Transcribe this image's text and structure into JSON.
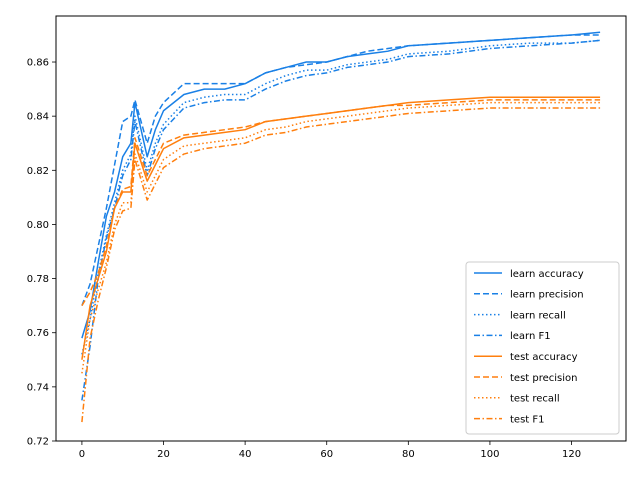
{
  "chart_data": {
    "type": "line",
    "title": "",
    "xlabel": "",
    "ylabel": "",
    "xlim": [
      -6.35,
      133.35
    ],
    "ylim": [
      0.72,
      0.877
    ],
    "xticks": [
      0,
      20,
      40,
      60,
      80,
      100,
      120
    ],
    "yticks": [
      0.72,
      0.74,
      0.76,
      0.78,
      0.8,
      0.82,
      0.84,
      0.86
    ],
    "grid": false,
    "legend_position": "lower-right",
    "colors": {
      "learn": "#1a80e6",
      "test": "#ff7f0e"
    },
    "series": [
      {
        "name": "learn accuracy",
        "group": "learn",
        "style": "solid",
        "x": [
          0,
          2,
          4,
          6,
          8,
          10,
          12,
          13,
          16,
          18,
          20,
          25,
          30,
          35,
          40,
          45,
          50,
          55,
          60,
          65,
          70,
          75,
          80,
          90,
          100,
          110,
          120,
          127
        ],
        "y": [
          0.758,
          0.768,
          0.786,
          0.803,
          0.812,
          0.825,
          0.83,
          0.845,
          0.825,
          0.835,
          0.842,
          0.848,
          0.85,
          0.85,
          0.852,
          0.856,
          0.858,
          0.86,
          0.86,
          0.862,
          0.863,
          0.864,
          0.866,
          0.867,
          0.868,
          0.869,
          0.87,
          0.871
        ]
      },
      {
        "name": "learn precision",
        "group": "learn",
        "style": "dashed",
        "x": [
          0,
          2,
          4,
          6,
          8,
          10,
          12,
          13,
          16,
          18,
          20,
          25,
          30,
          35,
          40,
          45,
          50,
          55,
          60,
          65,
          70,
          75,
          80,
          90,
          100,
          110,
          120,
          127
        ],
        "y": [
          0.77,
          0.778,
          0.792,
          0.806,
          0.822,
          0.838,
          0.84,
          0.846,
          0.83,
          0.84,
          0.845,
          0.852,
          0.852,
          0.852,
          0.852,
          0.856,
          0.858,
          0.859,
          0.86,
          0.862,
          0.864,
          0.865,
          0.866,
          0.867,
          0.868,
          0.869,
          0.87,
          0.87
        ]
      },
      {
        "name": "learn recall",
        "group": "learn",
        "style": "dotted",
        "x": [
          0,
          2,
          4,
          6,
          8,
          10,
          12,
          13,
          16,
          18,
          20,
          25,
          30,
          35,
          40,
          45,
          50,
          55,
          60,
          65,
          70,
          75,
          80,
          90,
          100,
          110,
          120,
          127
        ],
        "y": [
          0.752,
          0.765,
          0.782,
          0.796,
          0.808,
          0.82,
          0.826,
          0.84,
          0.82,
          0.83,
          0.837,
          0.845,
          0.847,
          0.848,
          0.848,
          0.852,
          0.855,
          0.857,
          0.857,
          0.859,
          0.86,
          0.861,
          0.863,
          0.864,
          0.866,
          0.867,
          0.867,
          0.868
        ]
      },
      {
        "name": "learn F1",
        "group": "learn",
        "style": "dashdot",
        "x": [
          0,
          2,
          4,
          6,
          8,
          10,
          12,
          13,
          16,
          18,
          20,
          25,
          30,
          35,
          40,
          45,
          50,
          55,
          60,
          65,
          70,
          75,
          80,
          90,
          100,
          110,
          120,
          127
        ],
        "y": [
          0.735,
          0.755,
          0.78,
          0.795,
          0.806,
          0.818,
          0.824,
          0.838,
          0.818,
          0.828,
          0.835,
          0.843,
          0.845,
          0.846,
          0.846,
          0.85,
          0.853,
          0.855,
          0.856,
          0.858,
          0.859,
          0.86,
          0.862,
          0.863,
          0.865,
          0.866,
          0.867,
          0.868
        ]
      },
      {
        "name": "test accuracy",
        "group": "test",
        "style": "solid",
        "x": [
          0,
          2,
          4,
          6,
          8,
          10,
          12,
          13,
          16,
          18,
          20,
          25,
          30,
          35,
          40,
          45,
          50,
          55,
          60,
          65,
          70,
          75,
          80,
          90,
          100,
          110,
          120,
          127
        ],
        "y": [
          0.75,
          0.77,
          0.78,
          0.79,
          0.806,
          0.812,
          0.812,
          0.83,
          0.816,
          0.822,
          0.828,
          0.832,
          0.833,
          0.834,
          0.835,
          0.838,
          0.839,
          0.84,
          0.841,
          0.842,
          0.843,
          0.844,
          0.845,
          0.846,
          0.847,
          0.847,
          0.847,
          0.847
        ]
      },
      {
        "name": "test precision",
        "group": "test",
        "style": "dashed",
        "x": [
          0,
          2,
          4,
          6,
          8,
          10,
          12,
          13,
          16,
          18,
          20,
          25,
          30,
          35,
          40,
          45,
          50,
          55,
          60,
          65,
          70,
          75,
          80,
          90,
          100,
          110,
          120,
          127
        ],
        "y": [
          0.77,
          0.775,
          0.782,
          0.792,
          0.806,
          0.813,
          0.814,
          0.832,
          0.818,
          0.824,
          0.83,
          0.833,
          0.834,
          0.835,
          0.836,
          0.838,
          0.839,
          0.84,
          0.841,
          0.842,
          0.843,
          0.844,
          0.844,
          0.845,
          0.846,
          0.846,
          0.846,
          0.846
        ]
      },
      {
        "name": "test recall",
        "group": "test",
        "style": "dotted",
        "x": [
          0,
          2,
          4,
          6,
          8,
          10,
          12,
          13,
          16,
          18,
          20,
          25,
          30,
          35,
          40,
          45,
          50,
          55,
          60,
          65,
          70,
          75,
          80,
          90,
          100,
          110,
          120,
          127
        ],
        "y": [
          0.745,
          0.765,
          0.776,
          0.786,
          0.8,
          0.808,
          0.808,
          0.826,
          0.812,
          0.818,
          0.824,
          0.829,
          0.83,
          0.831,
          0.832,
          0.835,
          0.836,
          0.838,
          0.839,
          0.84,
          0.841,
          0.842,
          0.843,
          0.844,
          0.845,
          0.845,
          0.845,
          0.845
        ]
      },
      {
        "name": "test F1",
        "group": "test",
        "style": "dashdot",
        "x": [
          0,
          2,
          4,
          6,
          8,
          10,
          12,
          13,
          16,
          18,
          20,
          25,
          30,
          35,
          40,
          45,
          50,
          55,
          60,
          65,
          70,
          75,
          80,
          90,
          100,
          110,
          120,
          127
        ],
        "y": [
          0.727,
          0.758,
          0.772,
          0.784,
          0.798,
          0.805,
          0.806,
          0.824,
          0.809,
          0.815,
          0.821,
          0.826,
          0.828,
          0.829,
          0.83,
          0.833,
          0.834,
          0.836,
          0.837,
          0.838,
          0.839,
          0.84,
          0.841,
          0.842,
          0.843,
          0.843,
          0.843,
          0.843
        ]
      }
    ]
  }
}
